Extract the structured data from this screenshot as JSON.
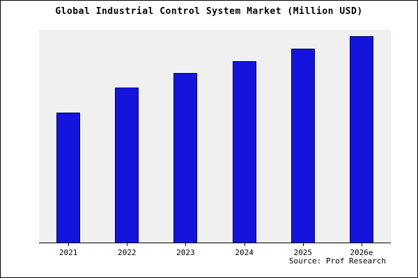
{
  "chart_data": {
    "type": "bar",
    "title": "Global Industrial Control System Market (Million USD)",
    "categories": [
      "2021",
      "2022",
      "2023",
      "2024",
      "2025",
      "2026e"
    ],
    "values": [
      63,
      75,
      82,
      88,
      94,
      100
    ],
    "values_note": "relative units estimated from bar heights; no y-axis tick labels shown",
    "xlabel": "",
    "ylabel": "",
    "ylim": [
      0,
      103
    ],
    "grid": false,
    "legend": false,
    "bar_color": "#1414dd",
    "bar_border_color": "#000066",
    "plot_background": "#f0f0f0",
    "source": "Source: Prof Research"
  }
}
